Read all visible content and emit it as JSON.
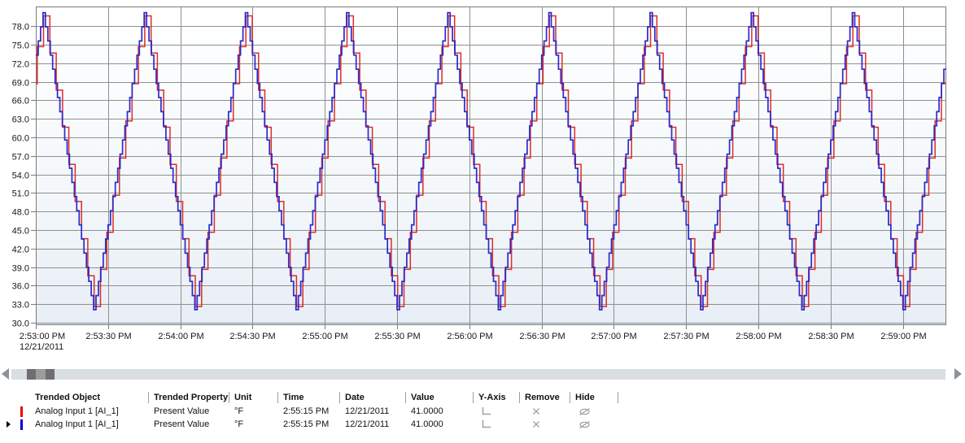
{
  "chart_data": {
    "type": "line",
    "title": "",
    "x_axis": {
      "tick_labels": [
        "2:53:00 PM",
        "2:53:30 PM",
        "2:54:00 PM",
        "2:54:30 PM",
        "2:55:00 PM",
        "2:55:30 PM",
        "2:56:00 PM",
        "2:56:30 PM",
        "2:57:00 PM",
        "2:57:30 PM",
        "2:58:00 PM",
        "2:58:30 PM",
        "2:59:00 PM"
      ],
      "date_label": "12/21/2011",
      "tick_interval_seconds": 30,
      "visible_span_seconds": 378
    },
    "y_axis": {
      "tick_labels": [
        "78.0",
        "75.0",
        "72.0",
        "69.0",
        "66.0",
        "63.0",
        "60.0",
        "57.0",
        "54.0",
        "51.0",
        "48.0",
        "45.0",
        "42.0",
        "39.0",
        "36.0",
        "33.0",
        "30.0"
      ],
      "max": 78,
      "min": 30,
      "step": 3,
      "plot_max": 81.2,
      "plot_min": 29.6
    },
    "waveform": {
      "shape": "triangle",
      "period_s": 42,
      "peak_at_s": 3,
      "max_value": 80.2,
      "min_value": 32.1
    },
    "series": [
      {
        "name": "Analog Input 1 [AI_1]",
        "color": "#dd2c27",
        "style": "step",
        "sample_interval_s": 2.625,
        "sample_offset_s": 0.6,
        "stroke_width": 1.5
      },
      {
        "name": "Analog Input 1 [AI_1]",
        "color": "#2b2bcb",
        "style": "step",
        "sample_interval_s": 1.0,
        "sample_offset_s": 0.0,
        "stroke_width": 1.7
      }
    ],
    "grid": {
      "show": true,
      "color": "#8f8f8f",
      "border_color": "#7a7a7a"
    },
    "plot_background": {
      "top": "#ffffff",
      "mid": "#f4f8fb",
      "bottom": "#e8eef5"
    }
  },
  "scrollbar": {
    "track_color": "#d9dee1",
    "thumb_dark": "#6f6f71",
    "thumb_mid": "#9c9c9e",
    "arrow_color": "#8b9298"
  },
  "table": {
    "headers": [
      "Trended Object",
      "Trended Property",
      "Unit",
      "Time",
      "Date",
      "Value",
      "Y-Axis",
      "Remove",
      "Hide"
    ],
    "rows": [
      {
        "swatch_color": "#ee0000",
        "selected": false,
        "object": "Analog Input 1 [AI_1]",
        "property": "Present Value",
        "unit": "°F",
        "time": "2:55:15 PM",
        "date": "12/21/2011",
        "value": "41.0000"
      },
      {
        "swatch_color": "#0000d2",
        "selected": true,
        "object": "Analog Input 1 [AI_1]",
        "property": "Present Value",
        "unit": "°F",
        "time": "2:55:15 PM",
        "date": "12/21/2011",
        "value": "41.0000"
      }
    ],
    "icon_color": "#99a1a7"
  }
}
